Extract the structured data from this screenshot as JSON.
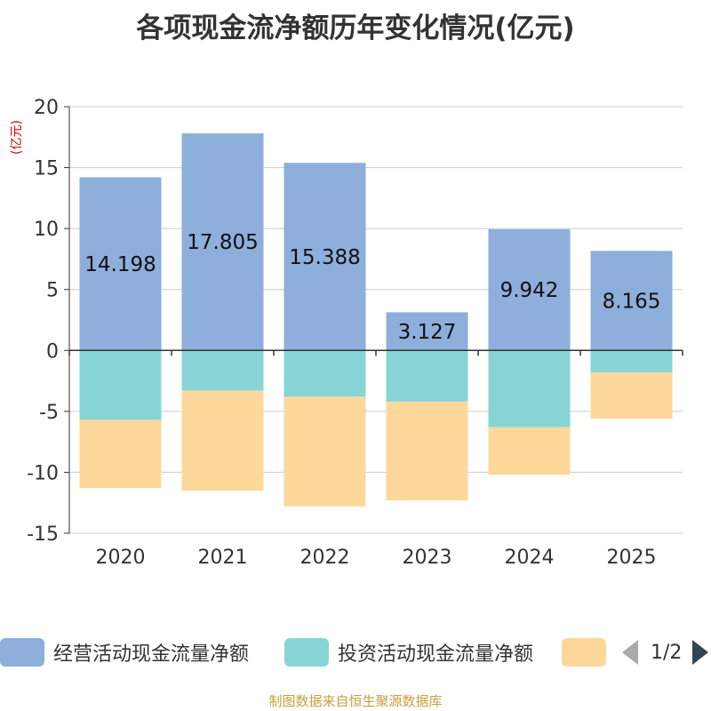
{
  "colors": {
    "operating": "#8eaedb",
    "investing": "#87d5d6",
    "financing": "#fed89b",
    "axis": "#333333",
    "grid": "#cccccc",
    "unit": "#e00000",
    "source": "#c7a03c"
  },
  "chart_data": {
    "type": "bar",
    "stacked": true,
    "title": "各项现金流净额历年变化情况(亿元)",
    "ylabel": "(亿元)",
    "ylim": [
      -15,
      20
    ],
    "yticks": [
      20,
      15,
      10,
      5,
      0,
      -5,
      -10,
      -15
    ],
    "categories": [
      "2020",
      "2021",
      "2022",
      "2023",
      "2024",
      "2025"
    ],
    "series": [
      {
        "name": "经营活动现金流量净额",
        "color_key": "operating",
        "values": [
          14.198,
          17.805,
          15.388,
          3.127,
          9.942,
          8.165
        ],
        "show_labels": true
      },
      {
        "name": "投资活动现金流量净额",
        "color_key": "investing",
        "values": [
          -5.7,
          -3.3,
          -3.8,
          -4.2,
          -6.3,
          -1.8
        ],
        "show_labels": false
      },
      {
        "name": "",
        "color_key": "financing",
        "values": [
          -5.6,
          -8.2,
          -9.0,
          -8.1,
          -3.9,
          -3.8
        ],
        "show_labels": false
      }
    ]
  },
  "legend": {
    "page_text": "1/2"
  },
  "source": "制图数据来自恒生聚源数据库"
}
